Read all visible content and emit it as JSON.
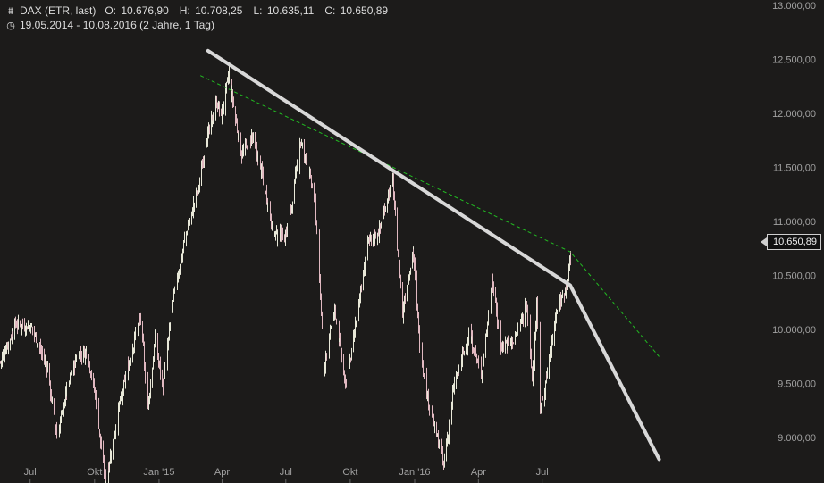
{
  "header": {
    "instrument": "DAX (ETR, last)",
    "open_label": "O:",
    "open": "10.676,90",
    "high_label": "H:",
    "high": "10.708,25",
    "low_label": "L:",
    "low": "10.635,11",
    "close_label": "C:",
    "close": "10.650,89",
    "range": "19.05.2014 - 10.08.2016 (2 Jahre, 1 Tag)",
    "chart_icon": "candlestick-chart-icon",
    "range_icon": "clock-icon"
  },
  "last_price": "10.650,89",
  "colors": {
    "background": "#1c1b1a",
    "candle_up": "#e8e8d8",
    "candle_down": "#e0b8c0",
    "trendline": "#d8d8d8",
    "dashed_trendline": "#22bb22",
    "axis_text": "#a0a0a0"
  },
  "chart_data": {
    "type": "candlestick",
    "y_ticks": [
      9000,
      9500,
      10000,
      10500,
      11000,
      11500,
      12000,
      12500,
      13000
    ],
    "y_tick_labels": [
      "9.000,00",
      "9.500,00",
      "10.000,00",
      "10.500,00",
      "11.000,00",
      "11.500,00",
      "12.000,00",
      "12.500,00",
      "13.000,00"
    ],
    "ylim": [
      8580,
      13050
    ],
    "x_range": [
      "2014-05-19",
      "2016-08-10"
    ],
    "x_ticks": [
      {
        "label": "Jul",
        "date": "2014-07-01"
      },
      {
        "label": "Okt",
        "date": "2014-10-01"
      },
      {
        "label": "Jan '15",
        "date": "2015-01-01"
      },
      {
        "label": "Apr",
        "date": "2015-04-01"
      },
      {
        "label": "Jul",
        "date": "2015-07-01"
      },
      {
        "label": "Okt",
        "date": "2015-10-01"
      },
      {
        "label": "Jan '16",
        "date": "2016-01-01"
      },
      {
        "label": "Apr",
        "date": "2016-04-01"
      },
      {
        "label": "Jul",
        "date": "2016-07-01"
      }
    ],
    "price_path": [
      [
        "2014-05-19",
        9700
      ],
      [
        "2014-06-10",
        10050
      ],
      [
        "2014-07-03",
        10020
      ],
      [
        "2014-07-25",
        9650
      ],
      [
        "2014-08-08",
        9000
      ],
      [
        "2014-08-22",
        9450
      ],
      [
        "2014-09-05",
        9750
      ],
      [
        "2014-09-20",
        9800
      ],
      [
        "2014-10-01",
        9400
      ],
      [
        "2014-10-16",
        8570
      ],
      [
        "2014-11-05",
        9300
      ],
      [
        "2014-11-28",
        9950
      ],
      [
        "2014-12-05",
        10100
      ],
      [
        "2014-12-16",
        9300
      ],
      [
        "2014-12-26",
        9900
      ],
      [
        "2015-01-06",
        9460
      ],
      [
        "2015-01-20",
        10250
      ],
      [
        "2015-02-05",
        10800
      ],
      [
        "2015-02-25",
        11300
      ],
      [
        "2015-03-11",
        11800
      ],
      [
        "2015-03-24",
        12100
      ],
      [
        "2015-03-31",
        11950
      ],
      [
        "2015-04-10",
        12375
      ],
      [
        "2015-04-28",
        11600
      ],
      [
        "2015-05-13",
        11800
      ],
      [
        "2015-05-29",
        11400
      ],
      [
        "2015-06-12",
        10900
      ],
      [
        "2015-06-29",
        10850
      ],
      [
        "2015-07-09",
        11150
      ],
      [
        "2015-07-21",
        11750
      ],
      [
        "2015-08-03",
        11450
      ],
      [
        "2015-08-12",
        11150
      ],
      [
        "2015-08-24",
        9650
      ],
      [
        "2015-09-08",
        10200
      ],
      [
        "2015-09-24",
        9450
      ],
      [
        "2015-10-09",
        10100
      ],
      [
        "2015-10-26",
        10800
      ],
      [
        "2015-11-10",
        10900
      ],
      [
        "2015-11-30",
        11400
      ],
      [
        "2015-12-14",
        10150
      ],
      [
        "2015-12-29",
        10750
      ],
      [
        "2016-01-08",
        9850
      ],
      [
        "2016-01-20",
        9330
      ],
      [
        "2016-02-11",
        8750
      ],
      [
        "2016-02-26",
        9500
      ],
      [
        "2016-03-18",
        9950
      ],
      [
        "2016-04-05",
        9600
      ],
      [
        "2016-04-20",
        10450
      ],
      [
        "2016-05-03",
        9850
      ],
      [
        "2016-05-20",
        9900
      ],
      [
        "2016-06-03",
        10100
      ],
      [
        "2016-06-08",
        10300
      ],
      [
        "2016-06-16",
        9550
      ],
      [
        "2016-06-23",
        10250
      ],
      [
        "2016-06-27",
        9250
      ],
      [
        "2016-07-08",
        9600
      ],
      [
        "2016-07-20",
        10150
      ],
      [
        "2016-08-01",
        10350
      ],
      [
        "2016-08-10",
        10650
      ]
    ],
    "trendline_solid": [
      [
        "2015-03-12",
        12580
      ],
      [
        "2016-08-10",
        10410
      ],
      [
        "2016-12-15",
        8800
      ]
    ],
    "trendline_dashed": [
      [
        "2015-03-01",
        12350
      ],
      [
        "2016-08-10",
        10720
      ],
      [
        "2016-12-15",
        9750
      ]
    ]
  }
}
